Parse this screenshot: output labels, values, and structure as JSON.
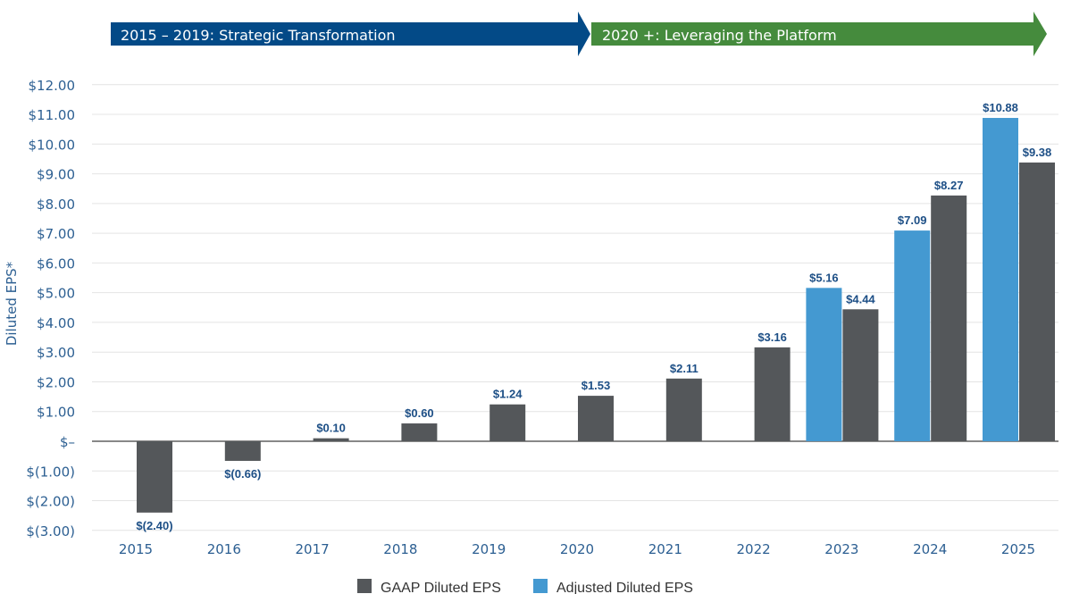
{
  "banners": [
    {
      "label": "2015 – 2019: Strategic Transformation",
      "color": "#034a87"
    },
    {
      "label": "2020 +: Leveraging the Platform",
      "color": "#458b3d"
    }
  ],
  "chart_data": {
    "type": "bar",
    "title": "",
    "xlabel": "",
    "ylabel": "Diluted EPS*",
    "ylim": [
      -3,
      12
    ],
    "yticks": [
      12,
      11,
      10,
      9,
      8,
      7,
      6,
      5,
      4,
      3,
      2,
      1,
      0,
      -1,
      -2,
      -3
    ],
    "ytick_labels": [
      "$12.00",
      "$11.00",
      "$10.00",
      "$9.00",
      "$8.00",
      "$7.00",
      "$6.00",
      "$5.00",
      "$4.00",
      "$3.00",
      "$2.00",
      "$1.00",
      "$–",
      "$(1.00)",
      "$(2.00)",
      "$(3.00)"
    ],
    "grid": true,
    "legend_position": "bottom",
    "categories": [
      "2015",
      "2016",
      "2017",
      "2018",
      "2019",
      "2020",
      "2021",
      "2022",
      "2023",
      "2024",
      "2025"
    ],
    "series": [
      {
        "name": "GAAP Diluted EPS",
        "color": "#54575a",
        "values": [
          -2.4,
          -0.66,
          0.1,
          0.6,
          1.24,
          1.53,
          2.11,
          3.16,
          4.44,
          8.27,
          9.38
        ],
        "labels": [
          "$(2.40)",
          "$(0.66)",
          "$0.10",
          "$0.60",
          "$1.24",
          "$1.53",
          "$2.11",
          "$3.16",
          "$4.44",
          "$8.27",
          "$9.38"
        ]
      },
      {
        "name": "Adjusted Diluted EPS",
        "color": "#4499d1",
        "values": [
          null,
          null,
          null,
          null,
          null,
          null,
          null,
          null,
          5.16,
          7.09,
          10.88
        ],
        "labels": [
          null,
          null,
          null,
          null,
          null,
          null,
          null,
          null,
          "$5.16",
          "$7.09",
          "$10.88"
        ]
      }
    ]
  }
}
